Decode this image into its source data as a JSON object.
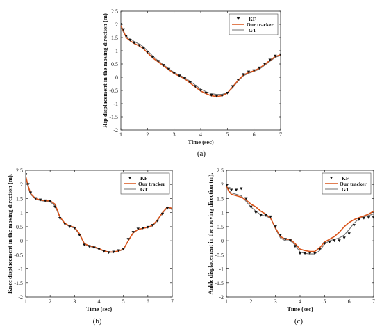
{
  "chart_data": [
    {
      "panel": "(a)",
      "type": "line",
      "xlabel": "Time (sec)",
      "ylabel": "Hip displacement in the moving direction (m)",
      "xlim": [
        1,
        7
      ],
      "ylim": [
        -2,
        2.5
      ],
      "xticks": [
        "1",
        "2",
        "3",
        "4",
        "5",
        "6",
        "7"
      ],
      "yticks": [
        "-2",
        "-1.5",
        "-1",
        "-0.5",
        "0",
        "0.5",
        "1",
        "1.5",
        "2",
        "2.5"
      ],
      "legend": {
        "placement": "top-right",
        "entries": [
          "KF",
          "Our tracker",
          "GT"
        ]
      },
      "grid": false,
      "series": [
        {
          "name": "KF",
          "style": "markers",
          "x": [
            1.0,
            1.1,
            1.2,
            1.35,
            1.5,
            1.7,
            1.85,
            2.0,
            2.2,
            2.4,
            2.6,
            2.8,
            3.0,
            3.2,
            3.4,
            3.6,
            3.8,
            4.0,
            4.2,
            4.4,
            4.6,
            4.8,
            5.0,
            5.2,
            5.4,
            5.6,
            5.8,
            6.0,
            6.2,
            6.4,
            6.6,
            6.8,
            7.0
          ],
          "y": [
            2.0,
            1.8,
            1.55,
            1.4,
            1.3,
            1.2,
            1.1,
            0.95,
            0.75,
            0.6,
            0.45,
            0.3,
            0.15,
            0.05,
            -0.05,
            -0.2,
            -0.35,
            -0.5,
            -0.6,
            -0.68,
            -0.72,
            -0.7,
            -0.6,
            -0.35,
            -0.1,
            0.1,
            0.2,
            0.25,
            0.35,
            0.5,
            0.65,
            0.8,
            0.85
          ]
        },
        {
          "name": "Our tracker",
          "style": "line",
          "x": [
            1.0,
            1.1,
            1.2,
            1.35,
            1.5,
            1.7,
            1.85,
            2.0,
            2.2,
            2.4,
            2.6,
            2.8,
            3.0,
            3.2,
            3.4,
            3.6,
            3.8,
            4.0,
            4.2,
            4.4,
            4.6,
            4.8,
            5.0,
            5.2,
            5.4,
            5.6,
            5.8,
            6.0,
            6.2,
            6.4,
            6.6,
            6.8,
            7.0
          ],
          "y": [
            1.95,
            1.75,
            1.5,
            1.38,
            1.28,
            1.18,
            1.08,
            0.92,
            0.73,
            0.58,
            0.43,
            0.28,
            0.14,
            0.04,
            -0.06,
            -0.22,
            -0.37,
            -0.52,
            -0.62,
            -0.7,
            -0.73,
            -0.7,
            -0.6,
            -0.36,
            -0.12,
            0.08,
            0.18,
            0.24,
            0.34,
            0.48,
            0.64,
            0.78,
            0.85
          ]
        },
        {
          "name": "GT",
          "style": "line",
          "x": [
            1.0,
            1.1,
            1.2,
            1.35,
            1.5,
            1.7,
            1.85,
            2.0,
            2.2,
            2.4,
            2.6,
            2.8,
            3.0,
            3.2,
            3.4,
            3.6,
            3.8,
            4.0,
            4.2,
            4.4,
            4.6,
            4.8,
            5.0,
            5.2,
            5.4,
            5.6,
            5.8,
            6.0,
            6.2,
            6.4,
            6.6,
            6.8,
            7.0
          ],
          "y": [
            1.9,
            1.7,
            1.55,
            1.45,
            1.35,
            1.25,
            1.15,
            1.0,
            0.8,
            0.62,
            0.47,
            0.32,
            0.18,
            0.08,
            -0.02,
            -0.15,
            -0.3,
            -0.45,
            -0.55,
            -0.62,
            -0.65,
            -0.65,
            -0.58,
            -0.4,
            -0.15,
            0.05,
            0.15,
            0.22,
            0.3,
            0.45,
            0.6,
            0.75,
            0.82
          ]
        }
      ]
    },
    {
      "panel": "(b)",
      "type": "line",
      "xlabel": "Time (sec)",
      "ylabel": "Knee displacement in the moving direction (m).",
      "xlim": [
        1,
        7
      ],
      "ylim": [
        -2,
        2.5
      ],
      "xticks": [
        "1",
        "2",
        "3",
        "4",
        "5",
        "6",
        "7"
      ],
      "yticks": [
        "-2",
        "-1.5",
        "-1",
        "-0.5",
        "0",
        "0.5",
        "1",
        "1.5",
        "2",
        "2.5"
      ],
      "legend": {
        "placement": "top-right",
        "entries": [
          "KF",
          "Our tracker",
          "GT"
        ]
      },
      "grid": false,
      "series": [
        {
          "name": "KF",
          "style": "markers",
          "x": [
            1.0,
            1.1,
            1.2,
            1.4,
            1.6,
            1.8,
            2.0,
            2.2,
            2.4,
            2.6,
            2.8,
            3.0,
            3.2,
            3.4,
            3.6,
            3.8,
            4.0,
            4.2,
            4.4,
            4.6,
            4.8,
            5.0,
            5.2,
            5.4,
            5.6,
            5.8,
            6.0,
            6.2,
            6.4,
            6.6,
            6.8,
            7.0
          ],
          "y": [
            2.35,
            2.0,
            1.7,
            1.5,
            1.45,
            1.42,
            1.4,
            1.2,
            0.8,
            0.6,
            0.5,
            0.45,
            0.2,
            -0.15,
            -0.2,
            -0.25,
            -0.3,
            -0.38,
            -0.42,
            -0.4,
            -0.35,
            -0.3,
            0.05,
            0.3,
            0.42,
            0.45,
            0.48,
            0.55,
            0.7,
            0.95,
            1.15,
            1.1
          ]
        },
        {
          "name": "Our tracker",
          "style": "line",
          "x": [
            1.0,
            1.1,
            1.2,
            1.4,
            1.6,
            1.8,
            2.0,
            2.2,
            2.4,
            2.6,
            2.8,
            3.0,
            3.2,
            3.4,
            3.6,
            3.8,
            4.0,
            4.2,
            4.4,
            4.6,
            4.8,
            5.0,
            5.2,
            5.4,
            5.6,
            5.8,
            6.0,
            6.2,
            6.4,
            6.6,
            6.8,
            7.0
          ],
          "y": [
            2.3,
            1.95,
            1.68,
            1.5,
            1.45,
            1.42,
            1.42,
            1.3,
            0.85,
            0.62,
            0.52,
            0.48,
            0.25,
            -0.1,
            -0.18,
            -0.22,
            -0.28,
            -0.36,
            -0.4,
            -0.4,
            -0.36,
            -0.3,
            0.0,
            0.28,
            0.4,
            0.44,
            0.48,
            0.55,
            0.75,
            1.0,
            1.2,
            1.15
          ]
        },
        {
          "name": "GT",
          "style": "line",
          "x": [
            1.0,
            1.1,
            1.2,
            1.4,
            1.6,
            1.8,
            2.0,
            2.2,
            2.4,
            2.6,
            2.8,
            3.0,
            3.2,
            3.4,
            3.6,
            3.8,
            4.0,
            4.2,
            4.4,
            4.6,
            4.8,
            5.0,
            5.2,
            5.4,
            5.6,
            5.8,
            6.0,
            6.2,
            6.4,
            6.6,
            6.8,
            7.0
          ],
          "y": [
            2.25,
            1.9,
            1.65,
            1.48,
            1.43,
            1.4,
            1.38,
            1.25,
            0.82,
            0.6,
            0.5,
            0.45,
            0.22,
            -0.12,
            -0.2,
            -0.24,
            -0.3,
            -0.37,
            -0.41,
            -0.41,
            -0.37,
            -0.32,
            0.0,
            0.27,
            0.4,
            0.44,
            0.47,
            0.53,
            0.72,
            0.98,
            1.18,
            1.12
          ]
        }
      ]
    },
    {
      "panel": "(c)",
      "type": "line",
      "xlabel": "Time (sec)",
      "ylabel": "Ankle displacement in the moving direction (m).",
      "xlim": [
        1,
        7
      ],
      "ylim": [
        -2,
        2.5
      ],
      "xticks": [
        "1",
        "2",
        "3",
        "4",
        "5",
        "6",
        "7"
      ],
      "yticks": [
        "-2",
        "-1.5",
        "-1",
        "-0.5",
        "0",
        "0.5",
        "1",
        "1.5",
        "2",
        "2.5"
      ],
      "legend": {
        "placement": "top-right",
        "entries": [
          "KF",
          "Our tracker",
          "GT"
        ]
      },
      "grid": false,
      "series": [
        {
          "name": "KF",
          "style": "markers",
          "x": [
            1.0,
            1.1,
            1.2,
            1.4,
            1.6,
            1.8,
            2.0,
            2.2,
            2.4,
            2.6,
            2.8,
            3.0,
            3.2,
            3.4,
            3.6,
            3.8,
            4.0,
            4.2,
            4.4,
            4.6,
            4.8,
            5.0,
            5.2,
            5.4,
            5.6,
            5.8,
            6.0,
            6.2,
            6.4,
            6.6,
            6.8,
            7.0
          ],
          "y": [
            1.95,
            1.85,
            1.8,
            1.8,
            1.85,
            1.5,
            1.2,
            1.0,
            0.9,
            0.9,
            0.85,
            0.5,
            0.2,
            0.05,
            0.0,
            -0.2,
            -0.45,
            -0.45,
            -0.45,
            -0.45,
            -0.3,
            -0.1,
            -0.05,
            0.0,
            0.0,
            0.1,
            0.25,
            0.55,
            0.75,
            0.8,
            0.82,
            0.82
          ]
        },
        {
          "name": "Our tracker",
          "style": "line",
          "x": [
            1.0,
            1.1,
            1.2,
            1.4,
            1.6,
            1.8,
            2.0,
            2.2,
            2.4,
            2.6,
            2.8,
            3.0,
            3.2,
            3.4,
            3.6,
            3.8,
            4.0,
            4.2,
            4.4,
            4.6,
            4.8,
            5.0,
            5.2,
            5.4,
            5.6,
            5.8,
            6.0,
            6.2,
            6.4,
            6.6,
            6.8,
            7.0
          ],
          "y": [
            1.95,
            1.75,
            1.65,
            1.6,
            1.55,
            1.45,
            1.3,
            1.2,
            1.05,
            0.95,
            0.8,
            0.45,
            0.15,
            0.05,
            0.05,
            -0.1,
            -0.3,
            -0.35,
            -0.38,
            -0.38,
            -0.25,
            -0.05,
            0.05,
            0.15,
            0.3,
            0.5,
            0.65,
            0.75,
            0.82,
            0.88,
            0.95,
            1.05
          ]
        },
        {
          "name": "GT",
          "style": "line",
          "x": [
            1.0,
            1.1,
            1.2,
            1.4,
            1.6,
            1.8,
            2.0,
            2.2,
            2.4,
            2.6,
            2.8,
            3.0,
            3.2,
            3.4,
            3.6,
            3.8,
            4.0,
            4.2,
            4.4,
            4.6,
            4.8,
            5.0,
            5.2,
            5.4,
            5.6,
            5.8,
            6.0,
            6.2,
            6.4,
            6.6,
            6.8,
            7.0
          ],
          "y": [
            1.95,
            1.78,
            1.7,
            1.65,
            1.6,
            1.4,
            1.2,
            1.05,
            0.92,
            0.88,
            0.8,
            0.42,
            0.1,
            0.0,
            0.0,
            -0.15,
            -0.4,
            -0.45,
            -0.47,
            -0.47,
            -0.35,
            -0.12,
            0.0,
            0.05,
            0.1,
            0.2,
            0.4,
            0.62,
            0.78,
            0.85,
            0.9,
            0.95
          ]
        }
      ]
    }
  ],
  "captions": [
    "(a)",
    "(b)",
    "(c)"
  ],
  "colors": {
    "kf": "#111111",
    "tracker": "#d95319",
    "gt": "#707070",
    "axis": "#222222"
  }
}
